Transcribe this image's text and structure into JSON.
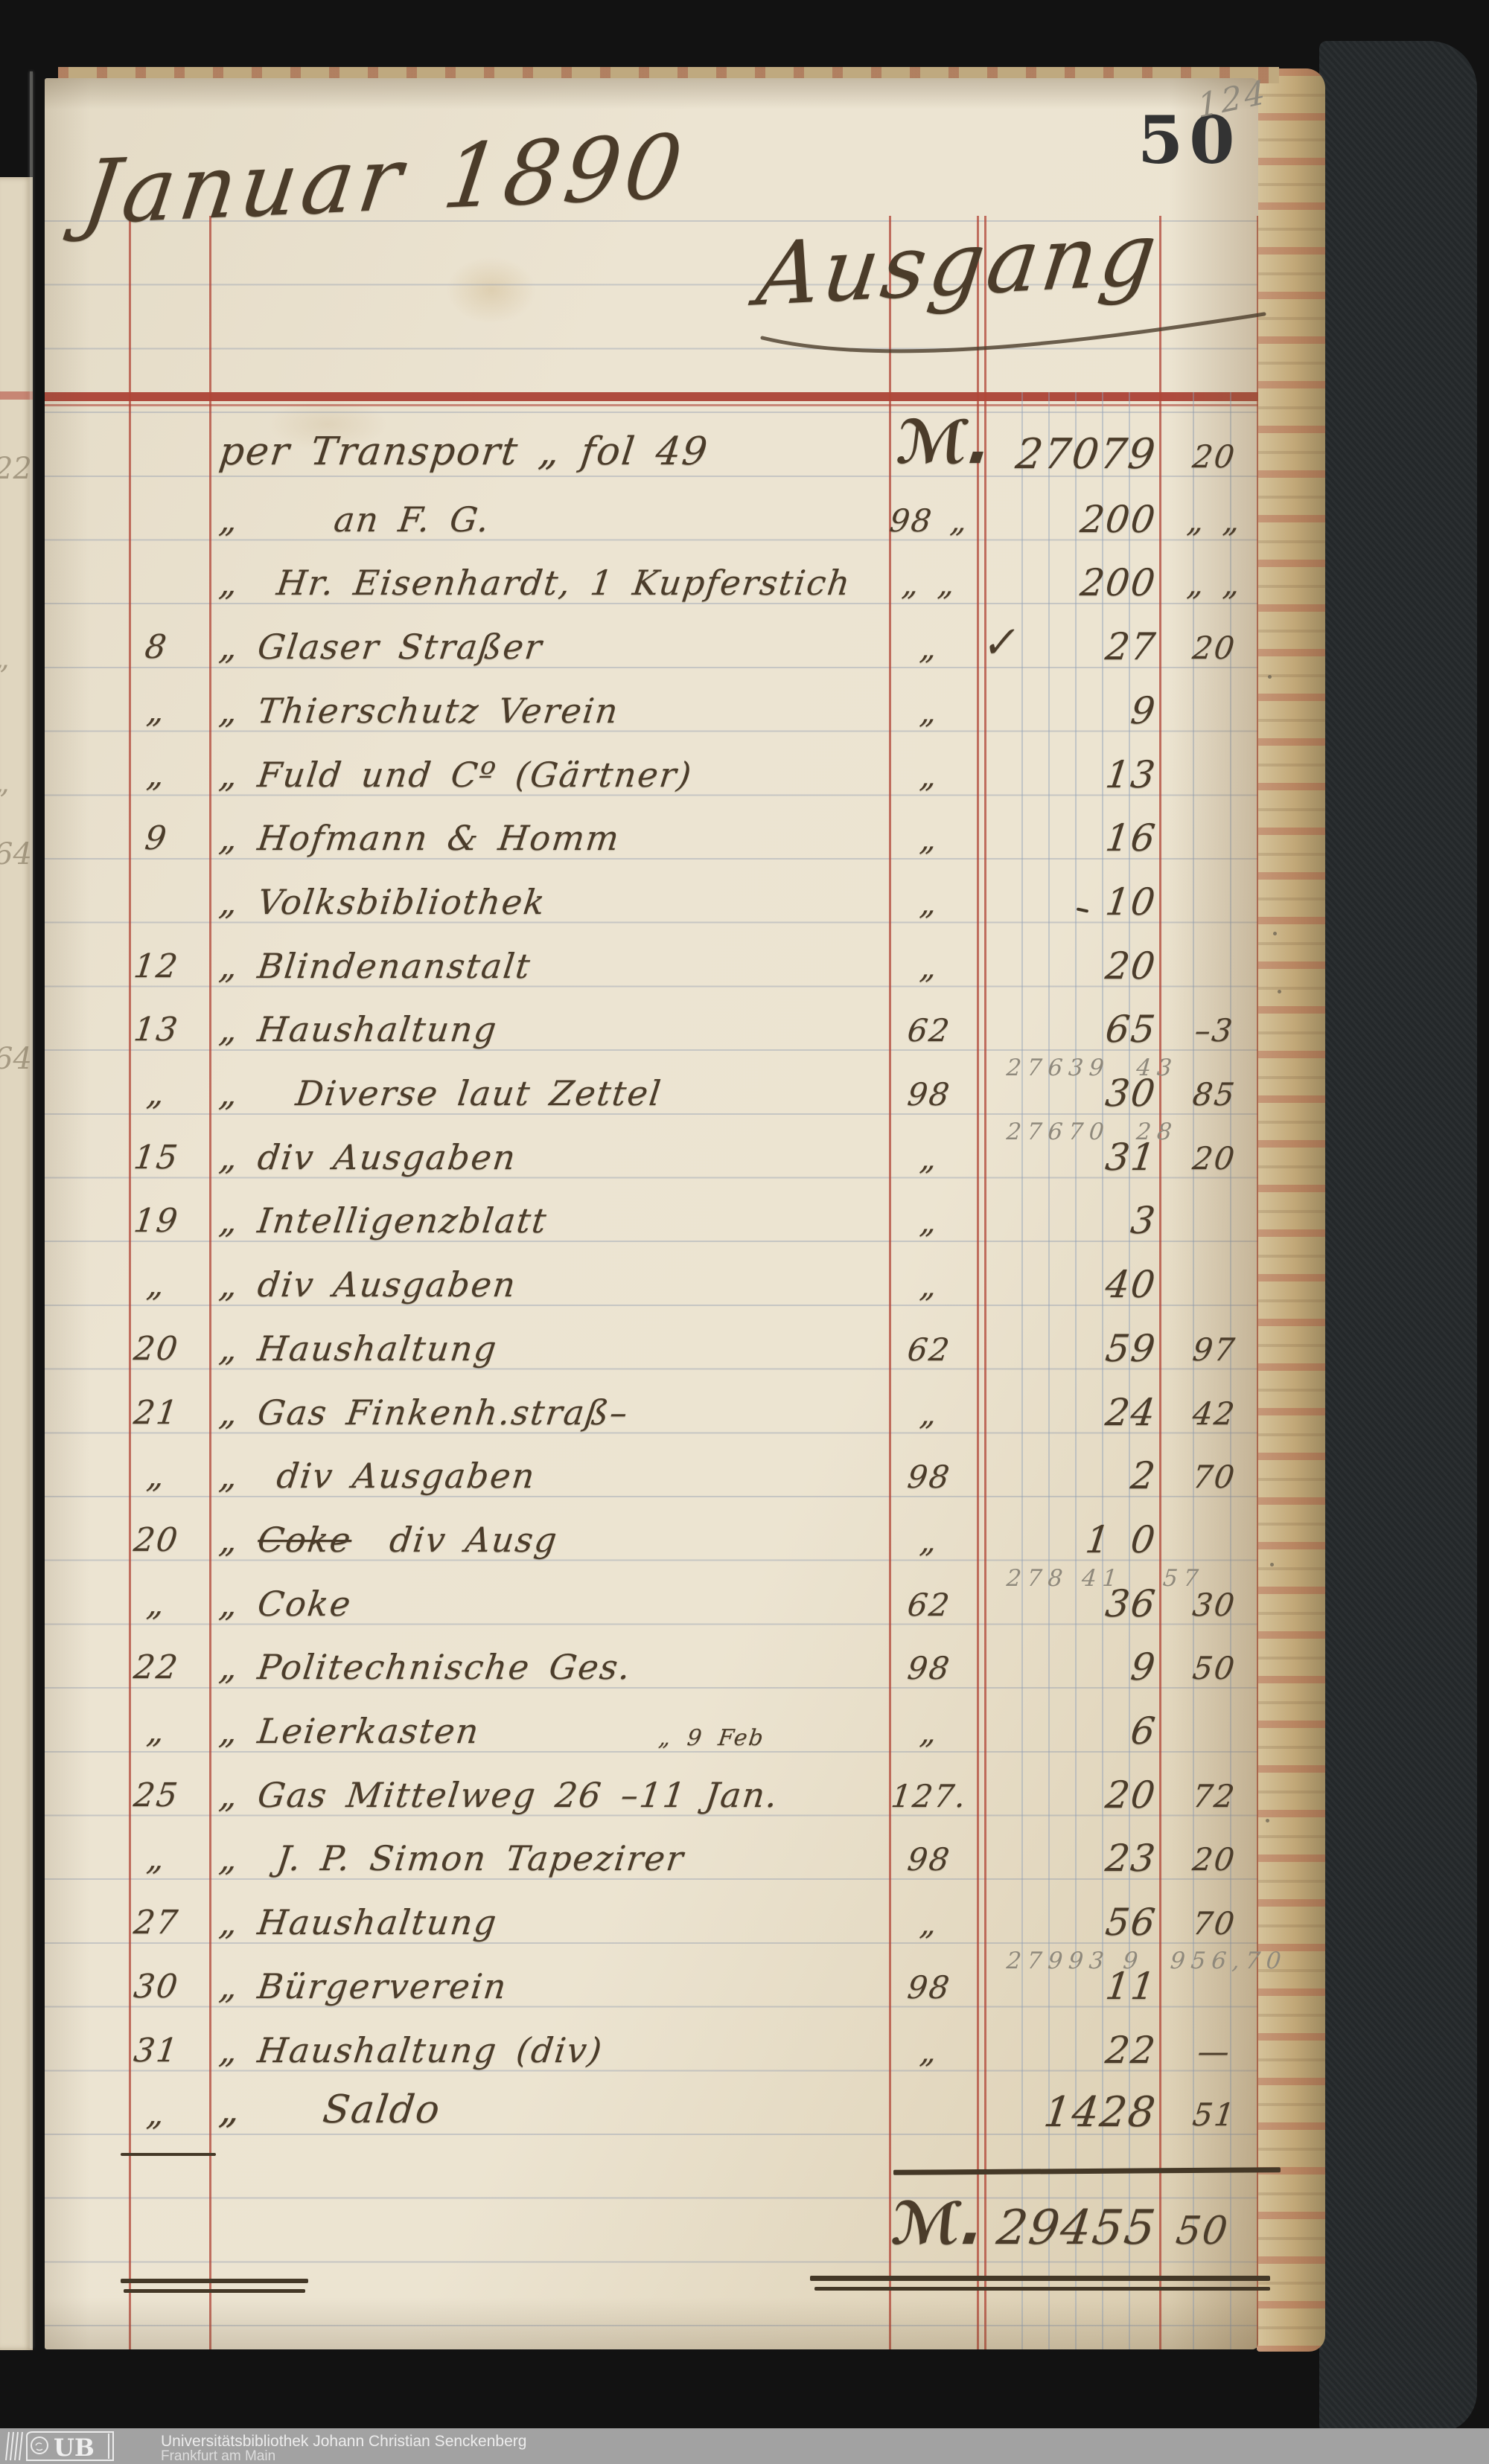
{
  "page": {
    "month_title": "Januar 1890",
    "section_title": "Ausgang",
    "printed_number": "50",
    "pencil_folio": "124"
  },
  "currency_sign": "ℳ.",
  "margin_bleedthrough_marks": [
    "22",
    "„",
    "„",
    "64",
    "64"
  ],
  "ledger": {
    "rows": [
      {
        "d": "",
        "desc": "per Transport „ fol 49",
        "cur": "ℳ.",
        "ref": "",
        "m": "27079",
        "p": "20",
        "big": 1
      },
      {
        "d": "",
        "desc": "„     an F. G.",
        "ref": "98 „",
        "m": "200",
        "p": "„ „"
      },
      {
        "d": "",
        "desc": "„  Hr. Eisenhardt, 1 Kupferstich",
        "ref": "„ „",
        "m": "200",
        "p": "„ „"
      },
      {
        "d": "8",
        "desc": "„ Glaser Straßer",
        "ref": "„",
        "chk": 1,
        "m": "27",
        "p": "20"
      },
      {
        "d": "„",
        "desc": "„ Thierschutz Verein",
        "ref": "„",
        "m": "9",
        "p": ""
      },
      {
        "d": "„",
        "desc": "„ Fuld und Cº (Gärtner)",
        "ref": "„",
        "m": "13",
        "p": ""
      },
      {
        "d": "9",
        "desc": "„ Hofmann & Homm",
        "ref": "„",
        "m": "16",
        "p": ""
      },
      {
        "d": "",
        "desc": "„ Volksbibliothek",
        "ref": "„",
        "m": "10",
        "p": "",
        "predash": 1
      },
      {
        "d": "12",
        "desc": "„ Blindenanstalt",
        "ref": "„",
        "m": "20",
        "p": ""
      },
      {
        "d": "13",
        "desc": "„ Haushaltung",
        "ref": "62",
        "m": "65",
        "p": "–3",
        "pencil": "27639  43"
      },
      {
        "d": "„",
        "desc": "„   Diverse laut Zettel",
        "ref": "98",
        "m": "30",
        "p": "85",
        "pencil": "27670  28"
      },
      {
        "d": "15",
        "desc": "„ div Ausgaben",
        "ref": "„",
        "m": "31",
        "p": "20"
      },
      {
        "d": "19",
        "desc": "„ Intelligenzblatt",
        "ref": "„",
        "m": "3",
        "p": ""
      },
      {
        "d": "„",
        "desc": "„ div Ausgaben",
        "ref": "„",
        "m": "40",
        "p": ""
      },
      {
        "d": "20",
        "desc": "„ Haushaltung",
        "ref": "62",
        "m": "59",
        "p": "97"
      },
      {
        "d": "21",
        "desc": "„ Gas Finkenh.straß–",
        "ref": "„",
        "m": "24",
        "p": "42"
      },
      {
        "d": "„",
        "desc": "„  div Ausgaben",
        "ref": "98",
        "m": "2",
        "p": "70"
      },
      {
        "d": "20",
        "strike": "Coke",
        "desc": "  div Ausg",
        "ref": "„",
        "m": "1 0",
        "p": "",
        "pencil": "278 41   57"
      },
      {
        "d": "„",
        "desc": "„ Coke",
        "ref": "62",
        "m": "36",
        "p": "30"
      },
      {
        "d": "22",
        "desc": "„ Politechnische Ges.",
        "ref": "98",
        "m": "9",
        "p": "50"
      },
      {
        "d": "„",
        "desc": "„ Leierkasten",
        "ref": "„",
        "m": "6",
        "p": ""
      },
      {
        "d": "25",
        "desc": "„ Gas Mittelweg 26 –11 Jan.",
        "sup": "„ 9 Feb",
        "ref": "127.",
        "m": "20",
        "p": "72"
      },
      {
        "d": "„",
        "desc": "„  J. P. Simon Tapezirer",
        "ref": "98",
        "m": "23",
        "p": "20"
      },
      {
        "d": "27",
        "desc": "„ Haushaltung",
        "ref": "„",
        "m": "56",
        "p": "70",
        "pencil": "27993 9  956,70"
      },
      {
        "d": "30",
        "desc": "„ Bürgerverein",
        "ref": "98",
        "m": "11",
        "p": ""
      },
      {
        "d": "31",
        "desc": "„ Haushaltung (div)",
        "ref": "„",
        "m": "22",
        "p": "—"
      },
      {
        "d": "„",
        "dunder": 1,
        "desc": "„    Saldo",
        "ref": "",
        "m": "1428",
        "p": "51",
        "big": 1
      }
    ],
    "total": {
      "currency": "ℳ.",
      "mark": "29455",
      "pf": "50"
    }
  },
  "footer": {
    "logo_text": "UB",
    "line1": "Universitätsbibliothek Johann Christian Senckenberg",
    "line2": "Frankfurt am Main"
  }
}
